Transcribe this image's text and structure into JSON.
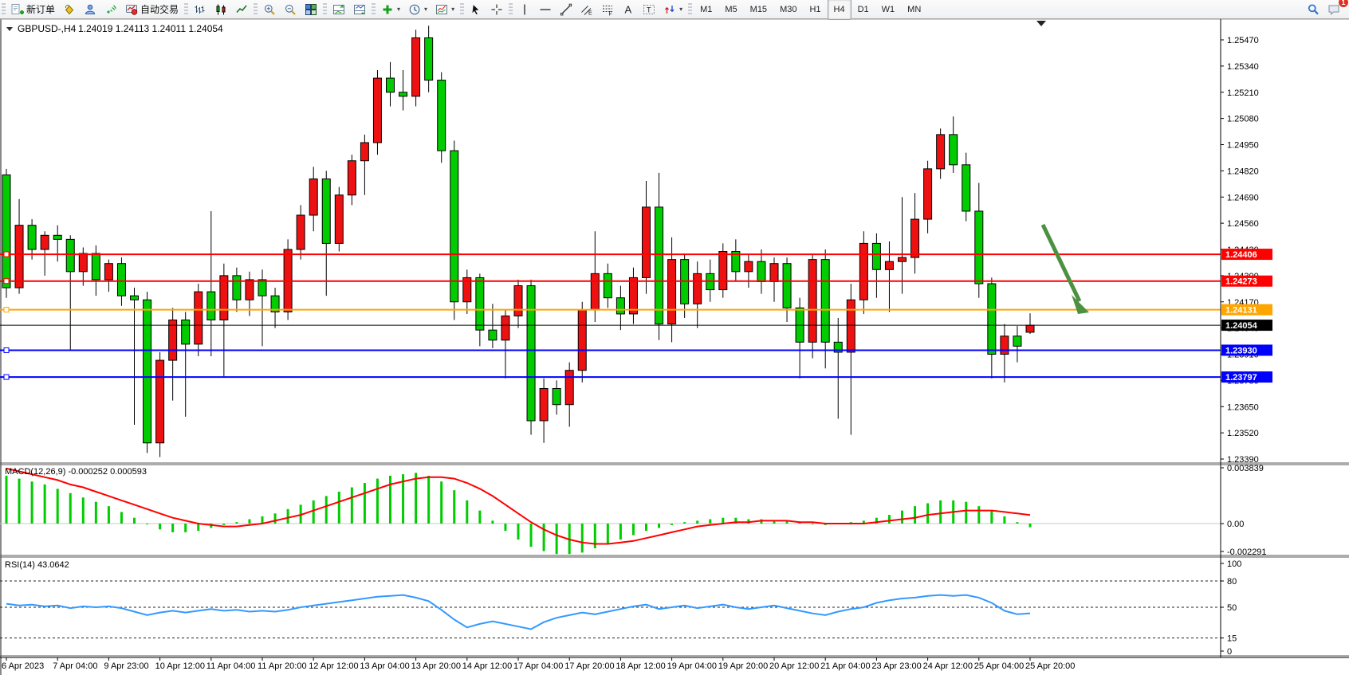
{
  "toolbar": {
    "new_order_label": "新订单",
    "autotrade_label": "自动交易",
    "icon_buttons_group1": [
      "new-order",
      "styles-bucket",
      "profile",
      "signal",
      "autotrade"
    ],
    "chart_type_icons": [
      "bar-chart",
      "candlestick-chart",
      "line-chart"
    ],
    "zoom_icons": [
      "zoom-in",
      "zoom-out",
      "tile-windows"
    ],
    "window_icons": [
      "indicator-window",
      "data-window"
    ],
    "dropdown_icons": [
      "add-indicator",
      "periods-clock",
      "templates"
    ],
    "pointer_icons": [
      "cursor",
      "crosshair"
    ],
    "drawing_icons": [
      "vertical-line",
      "horizontal-line",
      "trendline",
      "equidistant-channel",
      "fibonacci",
      "text",
      "text-label",
      "arrows"
    ],
    "timeframes": [
      "M1",
      "M5",
      "M15",
      "M30",
      "H1",
      "H4",
      "D1",
      "W1",
      "MN"
    ],
    "active_timeframe": "H4",
    "search_icon": "search",
    "notification_icon": "chat-bubble",
    "notification_count": "1"
  },
  "window": {
    "collapse_icon": "triangle-down",
    "symbol_period": "GBPUSD-,H4",
    "open": "1.24019",
    "high": "1.24113",
    "low": "1.24011",
    "close": "1.24054"
  },
  "chart_data": {
    "type": "candlestick",
    "symbol": "GBPUSD-",
    "period": "H4",
    "price_axis_labels": [
      "1.25470",
      "1.25340",
      "1.25210",
      "1.25080",
      "1.24950",
      "1.24820",
      "1.24690",
      "1.24560",
      "1.24430",
      "1.24300",
      "1.24170",
      "1.24040",
      "1.23910",
      "1.23780",
      "1.23650",
      "1.23520",
      "1.23390"
    ],
    "price_axis_top": 1.2547,
    "price_axis_step": 0.0013,
    "dates": [
      "6 Apr 2023",
      "7 Apr 04:00",
      "9 Apr 23:00",
      "10 Apr 12:00",
      "11 Apr 04:00",
      "11 Apr 20:00",
      "12 Apr 12:00",
      "13 Apr 04:00",
      "13 Apr 20:00",
      "14 Apr 12:00",
      "17 Apr 04:00",
      "17 Apr 20:00",
      "18 Apr 12:00",
      "19 Apr 04:00",
      "19 Apr 20:00",
      "20 Apr 12:00",
      "21 Apr 04:00",
      "23 Apr 23:00",
      "24 Apr 12:00",
      "25 Apr 04:00",
      "25 Apr 20:00"
    ],
    "candles": [
      [
        1.248,
        1.2483,
        1.2419,
        1.2424
      ],
      [
        1.2424,
        1.2468,
        1.2421,
        1.2455
      ],
      [
        1.2455,
        1.2458,
        1.2438,
        1.2443
      ],
      [
        1.2443,
        1.2452,
        1.243,
        1.245
      ],
      [
        1.245,
        1.2455,
        1.2437,
        1.2448
      ],
      [
        1.2448,
        1.245,
        1.2393,
        1.2432
      ],
      [
        1.2432,
        1.2444,
        1.2425,
        1.2441
      ],
      [
        1.2441,
        1.2445,
        1.242,
        1.2428
      ],
      [
        1.2428,
        1.2438,
        1.2422,
        1.2436
      ],
      [
        1.2436,
        1.2439,
        1.2415,
        1.242
      ],
      [
        1.242,
        1.2424,
        1.2356,
        1.2418
      ],
      [
        1.2418,
        1.2422,
        1.2342,
        1.2347
      ],
      [
        1.2347,
        1.2392,
        1.234,
        1.2388
      ],
      [
        1.2388,
        1.2414,
        1.2368,
        1.2408
      ],
      [
        1.2408,
        1.2412,
        1.236,
        1.2396
      ],
      [
        1.2396,
        1.2426,
        1.239,
        1.2422
      ],
      [
        1.2422,
        1.2462,
        1.239,
        1.2408
      ],
      [
        1.2408,
        1.2436,
        1.238,
        1.243
      ],
      [
        1.243,
        1.2434,
        1.2412,
        1.2418
      ],
      [
        1.2418,
        1.2432,
        1.241,
        1.2428
      ],
      [
        1.2428,
        1.2433,
        1.2395,
        1.242
      ],
      [
        1.242,
        1.2424,
        1.2404,
        1.2412
      ],
      [
        1.2412,
        1.2448,
        1.2408,
        1.2443
      ],
      [
        1.2443,
        1.2465,
        1.2438,
        1.246
      ],
      [
        1.246,
        1.2484,
        1.2452,
        1.2478
      ],
      [
        1.2478,
        1.2482,
        1.242,
        1.2446
      ],
      [
        1.2446,
        1.2474,
        1.2442,
        1.247
      ],
      [
        1.247,
        1.249,
        1.2465,
        1.2487
      ],
      [
        1.2487,
        1.25,
        1.247,
        1.2496
      ],
      [
        1.2496,
        1.2532,
        1.249,
        1.2528
      ],
      [
        1.2528,
        1.2536,
        1.2514,
        1.2521
      ],
      [
        1.2521,
        1.2532,
        1.2512,
        1.2519
      ],
      [
        1.2519,
        1.2552,
        1.2514,
        1.2548
      ],
      [
        1.2548,
        1.2554,
        1.2521,
        1.2527
      ],
      [
        1.2527,
        1.2531,
        1.2486,
        1.2492
      ],
      [
        1.2492,
        1.2497,
        1.2408,
        1.2417
      ],
      [
        1.2417,
        1.2433,
        1.2411,
        1.2429
      ],
      [
        1.2429,
        1.2431,
        1.2395,
        1.2403
      ],
      [
        1.2403,
        1.2416,
        1.2394,
        1.2398
      ],
      [
        1.2398,
        1.2413,
        1.2379,
        1.241
      ],
      [
        1.241,
        1.2428,
        1.2404,
        1.2425
      ],
      [
        1.2425,
        1.2428,
        1.2351,
        1.2358
      ],
      [
        1.2358,
        1.2379,
        1.2347,
        1.2374
      ],
      [
        1.2374,
        1.2378,
        1.2361,
        1.2366
      ],
      [
        1.2366,
        1.2387,
        1.2355,
        1.2383
      ],
      [
        1.2383,
        1.2417,
        1.2377,
        1.2413
      ],
      [
        1.2413,
        1.2452,
        1.2407,
        1.2431
      ],
      [
        1.2431,
        1.2436,
        1.2414,
        1.2419
      ],
      [
        1.2419,
        1.2425,
        1.2403,
        1.2411
      ],
      [
        1.2411,
        1.2434,
        1.2406,
        1.2429
      ],
      [
        1.2429,
        1.2477,
        1.2421,
        1.2464
      ],
      [
        1.2464,
        1.2481,
        1.2398,
        1.2406
      ],
      [
        1.2406,
        1.2449,
        1.2397,
        1.2438
      ],
      [
        1.2438,
        1.2441,
        1.2409,
        1.2416
      ],
      [
        1.2416,
        1.2437,
        1.2404,
        1.2431
      ],
      [
        1.2431,
        1.2438,
        1.2417,
        1.2423
      ],
      [
        1.2423,
        1.2446,
        1.2419,
        1.2442
      ],
      [
        1.2442,
        1.2448,
        1.2427,
        1.2432
      ],
      [
        1.2432,
        1.2441,
        1.2424,
        1.2437
      ],
      [
        1.2437,
        1.2443,
        1.2421,
        1.2427
      ],
      [
        1.2427,
        1.2439,
        1.2417,
        1.2436
      ],
      [
        1.2436,
        1.2439,
        1.2407,
        1.2414
      ],
      [
        1.2414,
        1.2419,
        1.2379,
        1.2397
      ],
      [
        1.2397,
        1.2441,
        1.2389,
        1.2438
      ],
      [
        1.2438,
        1.2443,
        1.2384,
        1.2397
      ],
      [
        1.2397,
        1.2409,
        1.2359,
        1.2392
      ],
      [
        1.2392,
        1.2426,
        1.2351,
        1.2418
      ],
      [
        1.2418,
        1.2452,
        1.2411,
        1.2446
      ],
      [
        1.2446,
        1.2451,
        1.2419,
        1.2433
      ],
      [
        1.2433,
        1.2447,
        1.2412,
        1.2437
      ],
      [
        1.2437,
        1.2469,
        1.2421,
        1.2439
      ],
      [
        1.2439,
        1.2471,
        1.2431,
        1.2458
      ],
      [
        1.2458,
        1.2487,
        1.2451,
        1.2483
      ],
      [
        1.2483,
        1.2503,
        1.2478,
        1.25
      ],
      [
        1.25,
        1.2509,
        1.2481,
        1.2485
      ],
      [
        1.2485,
        1.2491,
        1.2457,
        1.2462
      ],
      [
        1.2462,
        1.2476,
        1.2419,
        1.2426
      ],
      [
        1.2426,
        1.2429,
        1.2379,
        1.2391
      ],
      [
        1.2391,
        1.2406,
        1.2377,
        1.24
      ],
      [
        1.24,
        1.2405,
        1.2387,
        1.2395
      ],
      [
        1.24019,
        1.24113,
        1.24011,
        1.24054
      ]
    ],
    "hlines": [
      {
        "value": 1.24406,
        "label": "1.24406",
        "color": "#FF0000"
      },
      {
        "value": 1.24273,
        "label": "1.24273",
        "color": "#FF0000"
      },
      {
        "value": 1.24131,
        "label": "1.24131",
        "color": "#FFA500"
      },
      {
        "value": 1.2393,
        "label": "1.23930",
        "color": "#0000FF"
      },
      {
        "value": 1.23797,
        "label": "1.23797",
        "color": "#0000FF"
      }
    ],
    "current_price": {
      "value": 1.24054,
      "label": "1.24054",
      "color": "#000000"
    },
    "arrow_annotation": {
      "color": "#4C9141",
      "from_price": 1.2459,
      "to_price": 1.2416
    },
    "macd": {
      "label": "MACD(12,26,9) -0.000252 0.000593",
      "params": "12,26,9",
      "macd_value": "-0.000252",
      "signal_value": "0.000593",
      "axis_labels": [
        "0.003839",
        "0.00",
        "-0.002291"
      ],
      "histogram": [
        0.0033,
        0.0031,
        0.0029,
        0.0027,
        0.0024,
        0.0021,
        0.0018,
        0.0015,
        0.0012,
        0.0008,
        0.0004,
        0.0,
        -0.0004,
        -0.0006,
        -0.0006,
        -0.0005,
        -0.0003,
        -0.0001,
        0.0001,
        0.0003,
        0.0005,
        0.0007,
        0.001,
        0.0013,
        0.0016,
        0.0019,
        0.0022,
        0.0025,
        0.0028,
        0.0031,
        0.0033,
        0.0034,
        0.0035,
        0.0033,
        0.0029,
        0.0023,
        0.0016,
        0.0009,
        0.0002,
        -0.0005,
        -0.0011,
        -0.0016,
        -0.0019,
        -0.0021,
        -0.0021,
        -0.002,
        -0.0017,
        -0.0014,
        -0.0011,
        -0.0008,
        -0.0005,
        -0.0003,
        -0.0001,
        0.0001,
        0.0002,
        0.0003,
        0.0004,
        0.0004,
        0.0003,
        0.0003,
        0.0002,
        0.0002,
        0.0001,
        0.0,
        -0.0001,
        0.0,
        0.0001,
        0.0002,
        0.0004,
        0.0006,
        0.0009,
        0.0012,
        0.0014,
        0.0016,
        0.0016,
        0.0015,
        0.0012,
        0.0009,
        0.0005,
        0.0001,
        -0.000252
      ],
      "signal": [
        0.0038,
        0.0036,
        0.0034,
        0.0032,
        0.003,
        0.0027,
        0.0025,
        0.0022,
        0.0019,
        0.0016,
        0.0013,
        0.001,
        0.0007,
        0.0004,
        0.0002,
        0.0,
        -0.0001,
        -0.0002,
        -0.0002,
        -0.0001,
        0.0,
        0.0002,
        0.0004,
        0.0006,
        0.0009,
        0.0012,
        0.0015,
        0.0018,
        0.0021,
        0.0024,
        0.0027,
        0.0029,
        0.0031,
        0.0032,
        0.0032,
        0.0031,
        0.0028,
        0.0024,
        0.0019,
        0.0013,
        0.0007,
        0.0001,
        -0.0004,
        -0.0008,
        -0.0011,
        -0.0013,
        -0.0014,
        -0.0014,
        -0.0013,
        -0.0012,
        -0.001,
        -0.0008,
        -0.0006,
        -0.0004,
        -0.0002,
        -0.0001,
        0.0,
        0.0001,
        0.0001,
        0.0002,
        0.0002,
        0.0002,
        0.0001,
        0.0001,
        0.0,
        0.0,
        0.0,
        0.0,
        0.0001,
        0.0002,
        0.0003,
        0.0004,
        0.0006,
        0.0007,
        0.0008,
        0.0009,
        0.0009,
        0.0009,
        0.0008,
        0.0007,
        0.000593
      ]
    },
    "rsi": {
      "label": "RSI(14) 43.0642",
      "period": "14",
      "value": "43.0642",
      "axis_labels": [
        "100",
        "80",
        "50",
        "15",
        "0"
      ],
      "levels": [
        80,
        50,
        15
      ],
      "values": [
        54,
        52,
        53,
        51,
        52,
        49,
        51,
        50,
        51,
        49,
        45,
        41,
        44,
        46,
        44,
        46,
        48,
        46,
        47,
        45,
        46,
        45,
        47,
        50,
        52,
        54,
        56,
        58,
        60,
        62,
        63,
        64,
        61,
        57,
        47,
        36,
        27,
        31,
        34,
        31,
        28,
        25,
        33,
        38,
        41,
        44,
        42,
        45,
        48,
        51,
        53,
        48,
        50,
        52,
        49,
        51,
        53,
        50,
        48,
        50,
        52,
        49,
        46,
        43,
        41,
        45,
        48,
        50,
        55,
        58,
        60,
        61,
        63,
        64,
        63,
        64,
        61,
        55,
        46,
        42,
        43.0642
      ]
    },
    "colors": {
      "bull_candle": "#EE1111",
      "bear_candle": "#00CC00",
      "wick": "#000000",
      "macd_histogram": "#00CC00",
      "macd_signal": "#FF0000",
      "rsi_line": "#3399FF",
      "background": "#FFFFFF",
      "axis_text": "#000000"
    }
  }
}
